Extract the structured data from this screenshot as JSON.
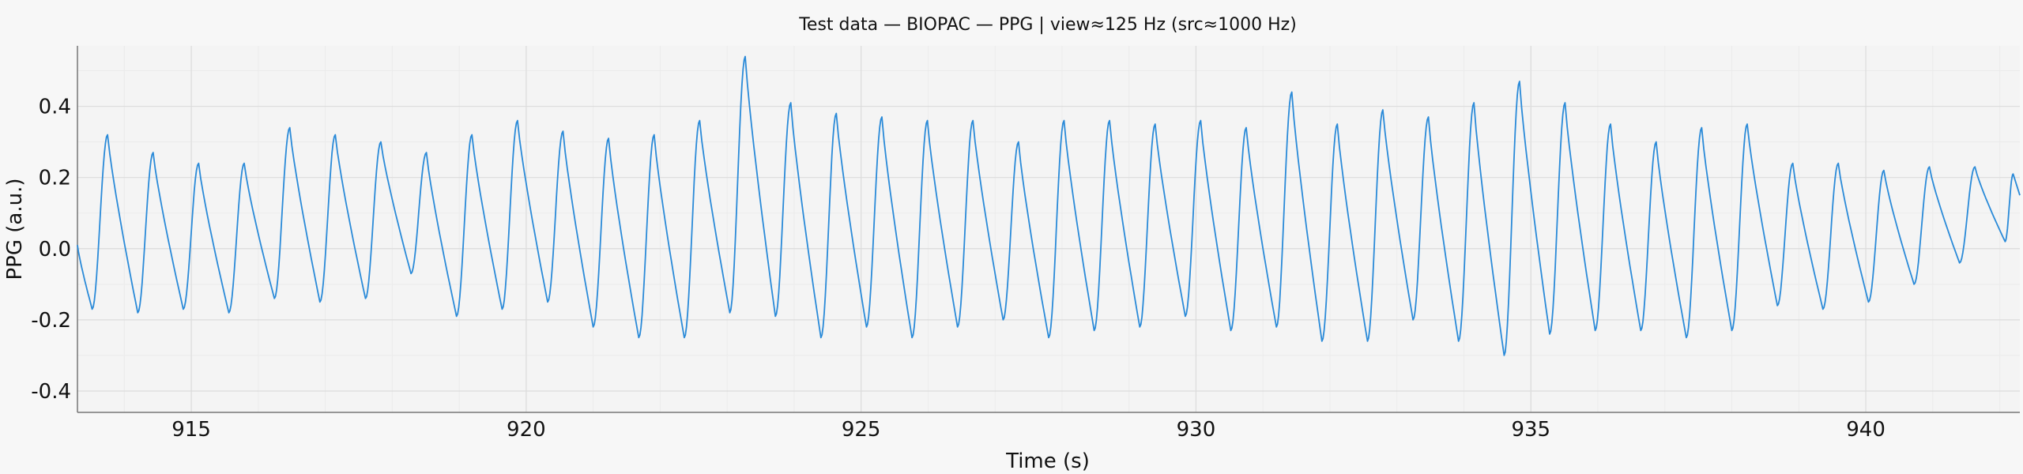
{
  "chart_data": {
    "type": "line",
    "title": "Test data — BIOPAC — PPG | view≈125 Hz (src≈1000 Hz)",
    "xlabel": "Time (s)",
    "ylabel": "PPG (a.u.)",
    "xlim": [
      913.3,
      942.3
    ],
    "ylim": [
      -0.46,
      0.57
    ],
    "xticks": [
      915,
      920,
      925,
      930,
      935,
      940
    ],
    "yticks": [
      -0.4,
      -0.2,
      0.0,
      0.2,
      0.4
    ],
    "xtick_labels": [
      "915",
      "920",
      "925",
      "930",
      "935",
      "940"
    ],
    "ytick_labels": [
      "-0.4",
      "-0.2",
      "0.0",
      "0.2",
      "0.4"
    ],
    "grid": true,
    "line_color": "#2a8ad8",
    "series": [
      {
        "beat_peaks": [
          [
            913.75,
            0.32
          ],
          [
            914.43,
            0.27
          ],
          [
            915.11,
            0.24
          ],
          [
            915.79,
            0.24
          ],
          [
            916.47,
            0.34
          ],
          [
            917.15,
            0.32
          ],
          [
            917.83,
            0.3
          ],
          [
            918.51,
            0.27
          ],
          [
            919.19,
            0.32
          ],
          [
            919.87,
            0.36
          ],
          [
            920.55,
            0.33
          ],
          [
            921.23,
            0.31
          ],
          [
            921.91,
            0.32
          ],
          [
            922.59,
            0.36
          ],
          [
            923.27,
            0.54
          ],
          [
            923.95,
            0.41
          ],
          [
            924.63,
            0.38
          ],
          [
            925.31,
            0.37
          ],
          [
            925.99,
            0.36
          ],
          [
            926.67,
            0.36
          ],
          [
            927.35,
            0.3
          ],
          [
            928.03,
            0.36
          ],
          [
            928.71,
            0.36
          ],
          [
            929.39,
            0.35
          ],
          [
            930.07,
            0.36
          ],
          [
            930.75,
            0.34
          ],
          [
            931.43,
            0.44
          ],
          [
            932.11,
            0.35
          ],
          [
            932.79,
            0.39
          ],
          [
            933.47,
            0.37
          ],
          [
            934.15,
            0.41
          ],
          [
            934.83,
            0.47
          ],
          [
            935.51,
            0.41
          ],
          [
            936.19,
            0.35
          ],
          [
            936.87,
            0.3
          ],
          [
            937.55,
            0.34
          ],
          [
            938.23,
            0.35
          ],
          [
            938.91,
            0.24
          ],
          [
            939.59,
            0.24
          ],
          [
            940.27,
            0.22
          ],
          [
            940.95,
            0.23
          ],
          [
            941.63,
            0.23
          ],
          [
            942.2,
            0.21
          ]
        ],
        "beat_troughs": [
          [
            913.52,
            -0.17
          ],
          [
            914.2,
            -0.18
          ],
          [
            914.88,
            -0.17
          ],
          [
            915.56,
            -0.18
          ],
          [
            916.24,
            -0.14
          ],
          [
            916.92,
            -0.15
          ],
          [
            917.6,
            -0.14
          ],
          [
            918.28,
            -0.07
          ],
          [
            918.96,
            -0.19
          ],
          [
            919.64,
            -0.17
          ],
          [
            920.32,
            -0.15
          ],
          [
            921.0,
            -0.22
          ],
          [
            921.68,
            -0.25
          ],
          [
            922.36,
            -0.25
          ],
          [
            923.04,
            -0.18
          ],
          [
            923.72,
            -0.19
          ],
          [
            924.4,
            -0.25
          ],
          [
            925.08,
            -0.22
          ],
          [
            925.76,
            -0.25
          ],
          [
            926.44,
            -0.22
          ],
          [
            927.12,
            -0.2
          ],
          [
            927.8,
            -0.25
          ],
          [
            928.48,
            -0.23
          ],
          [
            929.16,
            -0.22
          ],
          [
            929.84,
            -0.19
          ],
          [
            930.52,
            -0.23
          ],
          [
            931.2,
            -0.22
          ],
          [
            931.88,
            -0.26
          ],
          [
            932.56,
            -0.26
          ],
          [
            933.24,
            -0.2
          ],
          [
            933.92,
            -0.26
          ],
          [
            934.6,
            -0.3
          ],
          [
            935.28,
            -0.24
          ],
          [
            935.96,
            -0.23
          ],
          [
            936.64,
            -0.23
          ],
          [
            937.32,
            -0.25
          ],
          [
            938.0,
            -0.23
          ],
          [
            938.68,
            -0.16
          ],
          [
            939.36,
            -0.17
          ],
          [
            940.04,
            -0.15
          ],
          [
            940.72,
            -0.1
          ],
          [
            941.4,
            -0.04
          ],
          [
            942.08,
            0.02
          ]
        ]
      }
    ]
  }
}
